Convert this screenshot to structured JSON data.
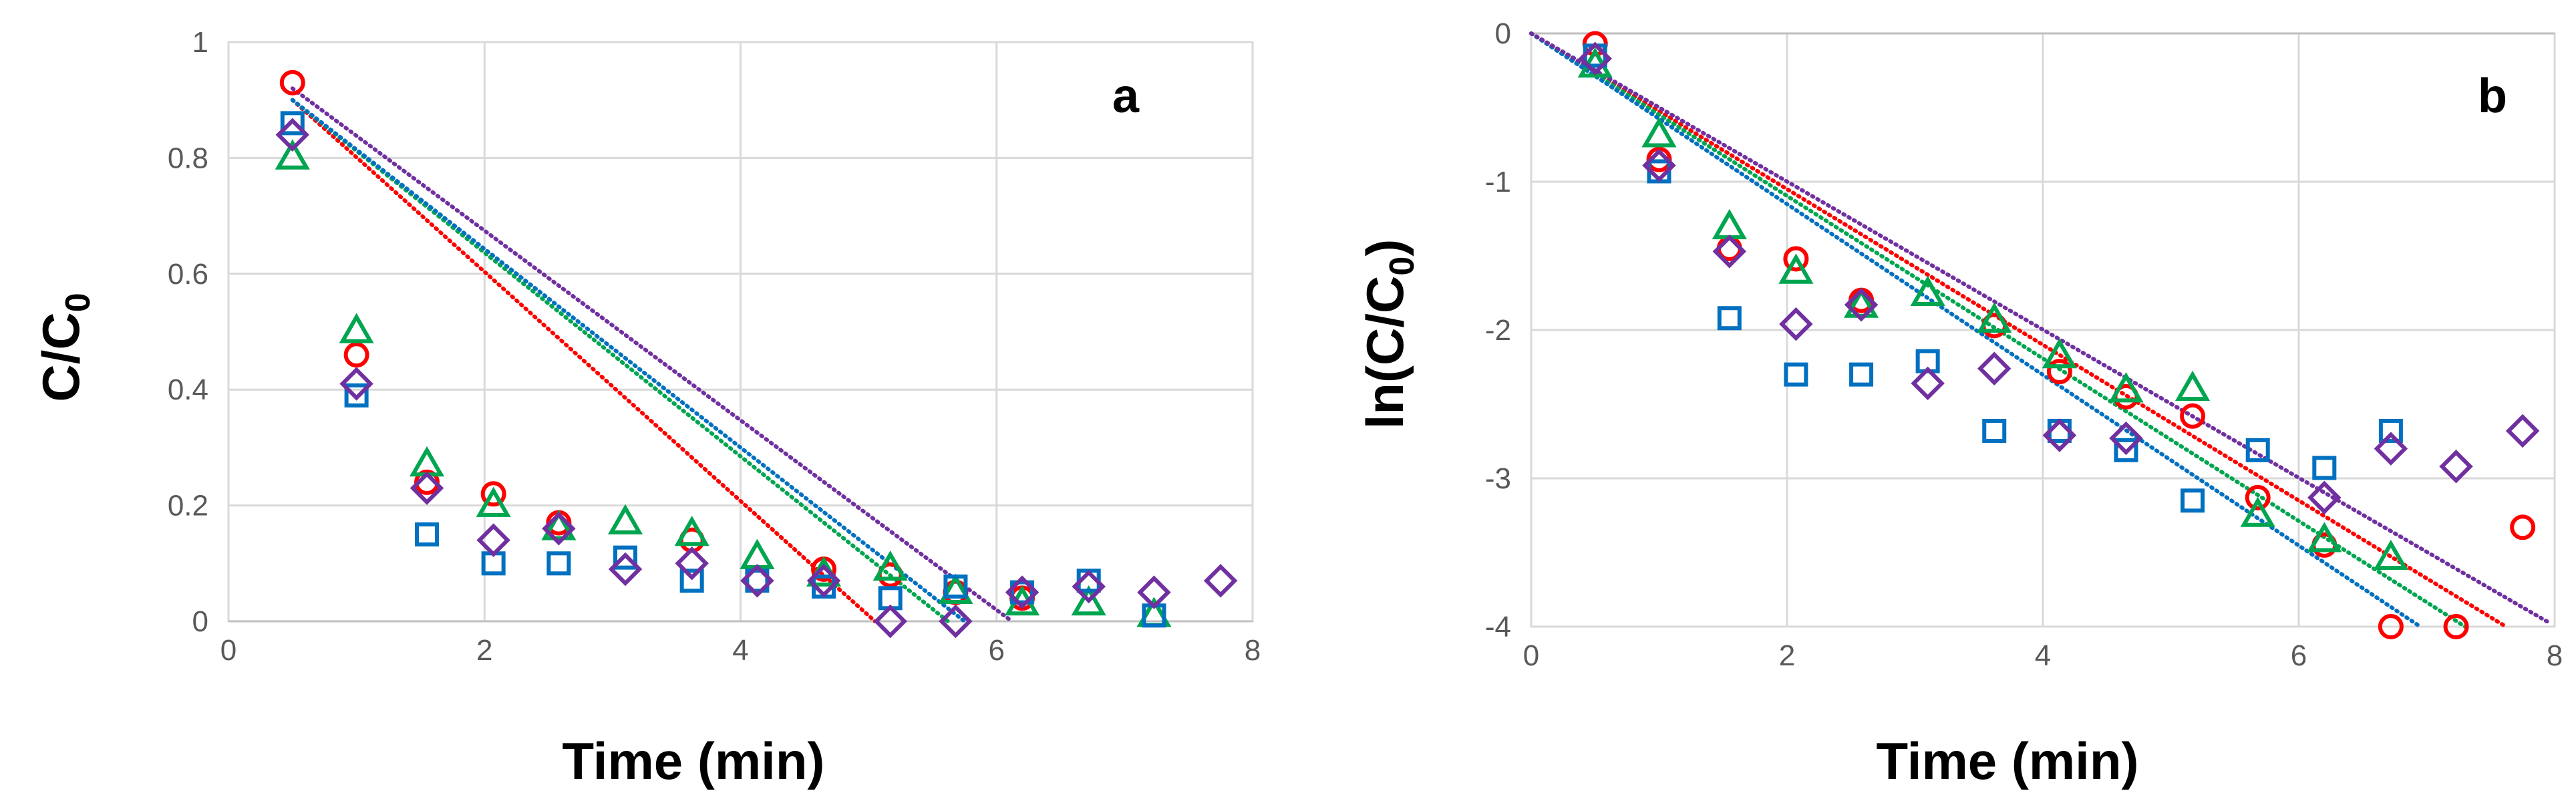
{
  "chart_data": [
    {
      "type": "scatter",
      "panel_label": "a",
      "title": "",
      "xlabel": "Time (min)",
      "ylabel": "C/C0",
      "ylabel_main": "C/C",
      "ylabel_sub": "0",
      "xlim": [
        0,
        8
      ],
      "ylim": [
        0,
        1
      ],
      "xticks": [
        0,
        2,
        4,
        6,
        8
      ],
      "xtick_labels": [
        "0",
        "2",
        "4",
        "6",
        "8"
      ],
      "yticks": [
        0,
        0.2,
        0.4,
        0.6,
        0.8,
        1
      ],
      "ytick_labels": [
        "0",
        "0.2",
        "0.4",
        "0.6",
        "0.8",
        "1"
      ],
      "grid": true,
      "legend": "none",
      "series": [
        {
          "marker": "circle",
          "color": "#FF0000",
          "points": [
            [
              0.5,
              0.93
            ],
            [
              1.0,
              0.46
            ],
            [
              1.55,
              0.24
            ],
            [
              2.07,
              0.22
            ],
            [
              2.58,
              0.17
            ],
            [
              3.62,
              0.14
            ],
            [
              4.65,
              0.09
            ],
            [
              5.17,
              0.08
            ],
            [
              5.68,
              0.05
            ],
            [
              6.2,
              0.04
            ]
          ],
          "trend": [
            [
              0.5,
              0.9
            ],
            [
              5.05,
              0.0
            ]
          ]
        },
        {
          "marker": "triangle",
          "color": "#00A550",
          "points": [
            [
              0.5,
              0.8
            ],
            [
              1.0,
              0.5
            ],
            [
              1.55,
              0.27
            ],
            [
              2.07,
              0.2
            ],
            [
              2.58,
              0.16
            ],
            [
              3.1,
              0.17
            ],
            [
              3.62,
              0.15
            ],
            [
              4.13,
              0.11
            ],
            [
              4.65,
              0.08
            ],
            [
              5.17,
              0.09
            ],
            [
              5.68,
              0.05
            ],
            [
              6.2,
              0.03
            ],
            [
              6.72,
              0.03
            ],
            [
              7.23,
              0.01
            ]
          ],
          "trend": [
            [
              0.5,
              0.9
            ],
            [
              5.62,
              0.0
            ]
          ]
        },
        {
          "marker": "square",
          "color": "#0070C0",
          "points": [
            [
              0.5,
              0.86
            ],
            [
              1.0,
              0.39
            ],
            [
              1.55,
              0.15
            ],
            [
              2.07,
              0.1
            ],
            [
              2.58,
              0.1
            ],
            [
              3.1,
              0.11
            ],
            [
              3.62,
              0.07
            ],
            [
              4.13,
              0.07
            ],
            [
              4.65,
              0.06
            ],
            [
              5.17,
              0.04
            ],
            [
              5.68,
              0.06
            ],
            [
              6.2,
              0.05
            ],
            [
              6.72,
              0.07
            ],
            [
              7.23,
              0.01
            ]
          ],
          "trend": [
            [
              0.5,
              0.9
            ],
            [
              5.75,
              0.0
            ]
          ]
        },
        {
          "marker": "diamond",
          "color": "#7030A0",
          "points": [
            [
              0.5,
              0.84
            ],
            [
              1.0,
              0.41
            ],
            [
              1.55,
              0.23
            ],
            [
              2.07,
              0.14
            ],
            [
              2.58,
              0.16
            ],
            [
              3.1,
              0.09
            ],
            [
              3.62,
              0.1
            ],
            [
              4.13,
              0.07
            ],
            [
              4.65,
              0.07
            ],
            [
              5.17,
              0.0
            ],
            [
              5.68,
              0.0
            ],
            [
              6.2,
              0.05
            ],
            [
              6.72,
              0.06
            ],
            [
              7.23,
              0.05
            ],
            [
              7.75,
              0.07
            ]
          ],
          "trend": [
            [
              0.5,
              0.92
            ],
            [
              6.12,
              0.0
            ]
          ]
        }
      ]
    },
    {
      "type": "scatter",
      "panel_label": "b",
      "title": "",
      "xlabel": "Time (min)",
      "ylabel": "ln(C/C0)",
      "ylabel_main": "ln(C/C",
      "ylabel_sub": "0",
      "ylabel_tail": ")",
      "xlim": [
        0,
        8
      ],
      "ylim": [
        -4,
        0
      ],
      "xticks": [
        0,
        2,
        4,
        6,
        8
      ],
      "xtick_labels": [
        "0",
        "2",
        "4",
        "6",
        "8"
      ],
      "yticks": [
        -4,
        -3,
        -2,
        -1,
        0
      ],
      "ytick_labels": [
        "-4",
        "-3",
        "-2",
        "-1",
        "0"
      ],
      "grid": true,
      "legend": "none",
      "series": [
        {
          "marker": "circle",
          "color": "#FF0000",
          "points": [
            [
              0.5,
              -0.07
            ],
            [
              1.0,
              -0.85
            ],
            [
              1.55,
              -1.45
            ],
            [
              2.07,
              -1.52
            ],
            [
              2.58,
              -1.8
            ],
            [
              3.62,
              -1.97
            ],
            [
              4.13,
              -2.28
            ],
            [
              4.65,
              -2.45
            ],
            [
              5.17,
              -2.58
            ],
            [
              5.68,
              -3.13
            ],
            [
              6.2,
              -3.45
            ],
            [
              6.72,
              -4.0
            ],
            [
              7.23,
              -4.0
            ],
            [
              7.75,
              -3.33
            ]
          ],
          "trend": [
            [
              0,
              0
            ],
            [
              7.62,
              -4.0
            ]
          ]
        },
        {
          "marker": "triangle",
          "color": "#00A550",
          "points": [
            [
              0.5,
              -0.22
            ],
            [
              1.0,
              -0.69
            ],
            [
              1.55,
              -1.31
            ],
            [
              2.07,
              -1.61
            ],
            [
              2.58,
              -1.84
            ],
            [
              3.1,
              -1.76
            ],
            [
              3.62,
              -1.94
            ],
            [
              4.13,
              -2.18
            ],
            [
              4.65,
              -2.41
            ],
            [
              5.17,
              -2.4
            ],
            [
              5.68,
              -3.25
            ],
            [
              6.2,
              -3.42
            ],
            [
              6.72,
              -3.54
            ]
          ],
          "trend": [
            [
              0,
              0
            ],
            [
              7.3,
              -4.0
            ]
          ]
        },
        {
          "marker": "square",
          "color": "#0070C0",
          "points": [
            [
              0.5,
              -0.15
            ],
            [
              1.0,
              -0.93
            ],
            [
              1.55,
              -1.92
            ],
            [
              2.07,
              -2.3
            ],
            [
              2.58,
              -2.3
            ],
            [
              3.1,
              -2.21
            ],
            [
              3.62,
              -2.68
            ],
            [
              4.13,
              -2.68
            ],
            [
              4.65,
              -2.81
            ],
            [
              5.17,
              -3.15
            ],
            [
              5.68,
              -2.81
            ],
            [
              6.2,
              -2.93
            ],
            [
              6.72,
              -2.68
            ]
          ],
          "trend": [
            [
              0,
              0
            ],
            [
              6.95,
              -4.0
            ]
          ]
        },
        {
          "marker": "diamond",
          "color": "#7030A0",
          "points": [
            [
              0.5,
              -0.17
            ],
            [
              1.0,
              -0.89
            ],
            [
              1.55,
              -1.47
            ],
            [
              2.07,
              -1.96
            ],
            [
              2.58,
              -1.83
            ],
            [
              3.1,
              -2.36
            ],
            [
              3.62,
              -2.26
            ],
            [
              4.13,
              -2.71
            ],
            [
              4.65,
              -2.73
            ],
            [
              6.2,
              -3.13
            ],
            [
              6.72,
              -2.8
            ],
            [
              7.23,
              -2.92
            ],
            [
              7.75,
              -2.68
            ]
          ],
          "trend": [
            [
              0,
              0
            ],
            [
              7.95,
              -3.97
            ]
          ]
        }
      ]
    }
  ]
}
